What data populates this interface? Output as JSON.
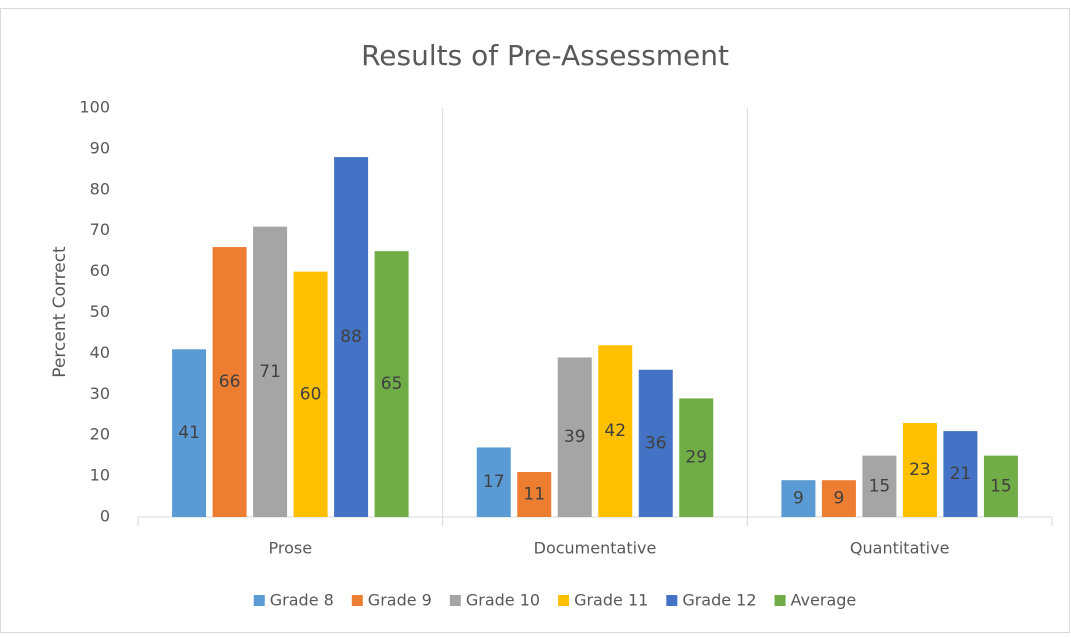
{
  "chart_data": {
    "type": "bar",
    "title": "Results of Pre-Assessment",
    "y_label": "Percent Correct",
    "categories": [
      "Prose",
      "Documentative",
      "Quantitative"
    ],
    "series": [
      {
        "name": "Grade 8",
        "color": "#5b9bd5",
        "values": [
          41,
          17,
          9
        ]
      },
      {
        "name": "Grade 9",
        "color": "#ed7d31",
        "values": [
          66,
          11,
          9
        ]
      },
      {
        "name": "Grade 10",
        "color": "#a5a5a5",
        "values": [
          71,
          39,
          15
        ]
      },
      {
        "name": "Grade 11",
        "color": "#ffc000",
        "values": [
          60,
          42,
          23
        ]
      },
      {
        "name": "Grade 12",
        "color": "#4472c4",
        "values": [
          88,
          36,
          21
        ]
      },
      {
        "name": "Average",
        "color": "#70ad47",
        "values": [
          65,
          29,
          15
        ]
      }
    ],
    "ylim": [
      0,
      100
    ],
    "yticks": [
      0,
      10,
      20,
      30,
      40,
      50,
      60,
      70,
      80,
      90,
      100
    ],
    "grid": false,
    "data_labels": true,
    "legend": "bottom"
  }
}
